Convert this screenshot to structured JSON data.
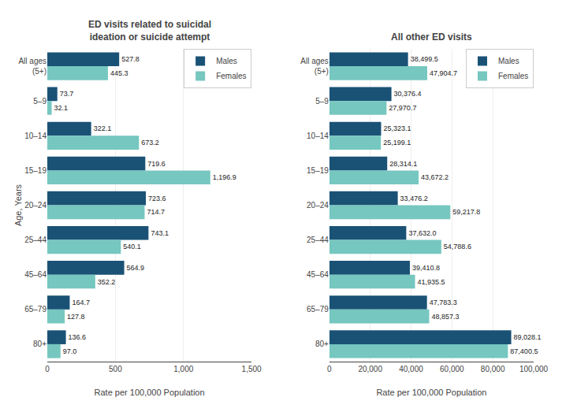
{
  "chart_data": [
    {
      "type": "bar",
      "orientation": "horizontal",
      "title": "ED visits related to suicidal\nideation or suicide attempt",
      "xlabel": "Rate per 100,000 Population",
      "ylabel": "Age, Years",
      "categories": [
        "All ages\n(5+)",
        "5–9",
        "10–14",
        "15–19",
        "20–24",
        "25–44",
        "45–64",
        "65–79",
        "80+"
      ],
      "series": [
        {
          "name": "Males",
          "color": "#1a5276",
          "values": [
            527.8,
            73.7,
            322.1,
            719.6,
            723.6,
            743.1,
            564.9,
            164.7,
            136.6
          ],
          "value_labels": [
            "527.8",
            "73.7",
            "322.1",
            "719.6",
            "723.6",
            "743.1",
            "564.9",
            "164.7",
            "136.6"
          ]
        },
        {
          "name": "Females",
          "color": "#76c7c0",
          "values": [
            445.3,
            32.1,
            673.2,
            1196.9,
            714.7,
            540.1,
            352.2,
            127.8,
            97.0
          ],
          "value_labels": [
            "445.3",
            "32.1",
            "673.2",
            "1,196.9",
            "714.7",
            "540.1",
            "352.2",
            "127.8",
            "97.0"
          ]
        }
      ],
      "xlim": [
        0,
        1500
      ],
      "xticks": [
        0,
        500,
        {
          "value": 1000,
          "label": "1,000"
        },
        {
          "value": 1500,
          "label": "1,500"
        }
      ],
      "grid": true,
      "legend": "upper right",
      "data_labels": true
    },
    {
      "type": "bar",
      "orientation": "horizontal",
      "title": "All other ED visits",
      "xlabel": "Rate per 100,000 Population",
      "categories": [
        "All ages\n(5+)",
        "5–9",
        "10–14",
        "15–19",
        "20–24",
        "25–44",
        "45–64",
        "65–79",
        "80+"
      ],
      "series": [
        {
          "name": "Males",
          "color": "#1a5276",
          "values": [
            38499.5,
            30376.4,
            25323.1,
            28314.1,
            33476.2,
            37632.0,
            39410.8,
            47783.3,
            89028.1
          ],
          "value_labels": [
            "38,499.5",
            "30,376.4",
            "25,323.1",
            "28,314.1",
            "33,476.2",
            "37,632.0",
            "39,410.8",
            "47,783.3",
            "89,028.1"
          ]
        },
        {
          "name": "Females",
          "color": "#76c7c0",
          "values": [
            47904.7,
            27970.7,
            25199.1,
            43672.2,
            59217.8,
            54788.6,
            41935.5,
            48857.3,
            87400.5
          ],
          "value_labels": [
            "47,904.7",
            "27,970.7",
            "25,199.1",
            "43,672.2",
            "59,217.8",
            "54,788.6",
            "41,935.5",
            "48,857.3",
            "87,400.5"
          ]
        }
      ],
      "xlim": [
        0,
        100000
      ],
      "xticks": [
        0,
        {
          "value": 20000,
          "label": "20,000"
        },
        {
          "value": 40000,
          "label": "40,000"
        },
        {
          "value": 60000,
          "label": "60,000"
        },
        {
          "value": 80000,
          "label": "80,000"
        },
        {
          "value": 100000,
          "label": "100,000"
        }
      ],
      "grid": true,
      "legend": "upper right",
      "data_labels": true
    }
  ]
}
